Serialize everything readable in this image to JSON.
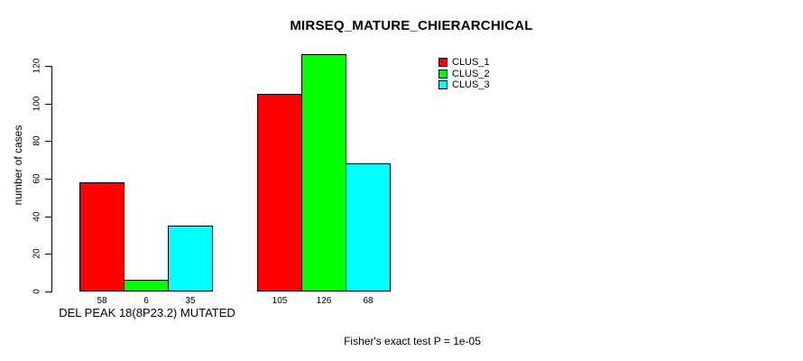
{
  "chart_data": {
    "type": "bar",
    "title": "MIRSEQ_MATURE_CHIERARCHICAL",
    "ylabel": "number of cases",
    "xlabel": "",
    "caption": "Fisher's exact test P = 1e-05",
    "group_axis_label": "DEL PEAK 18(8P23.2) MUTATED",
    "categories": [
      "DEL PEAK 18(8P23.2) MUTATED",
      ""
    ],
    "series": [
      {
        "name": "CLUS_1",
        "color": "#ff0000",
        "values": [
          58,
          105
        ]
      },
      {
        "name": "CLUS_2",
        "color": "#00ff00",
        "values": [
          6,
          126
        ]
      },
      {
        "name": "CLUS_3",
        "color": "#00ffff",
        "values": [
          35,
          68
        ]
      }
    ],
    "bar_value_labels": [
      [
        "58",
        "6",
        "35"
      ],
      [
        "105",
        "126",
        "68"
      ]
    ],
    "yticks": [
      "0",
      "20",
      "40",
      "60",
      "80",
      "100",
      "120"
    ],
    "ylim": [
      0,
      130
    ],
    "grid": false,
    "bar_border_color": "#000000",
    "legend": {
      "position": "top-right",
      "entries": [
        "CLUS_1",
        "CLUS_2",
        "CLUS_3"
      ]
    }
  }
}
